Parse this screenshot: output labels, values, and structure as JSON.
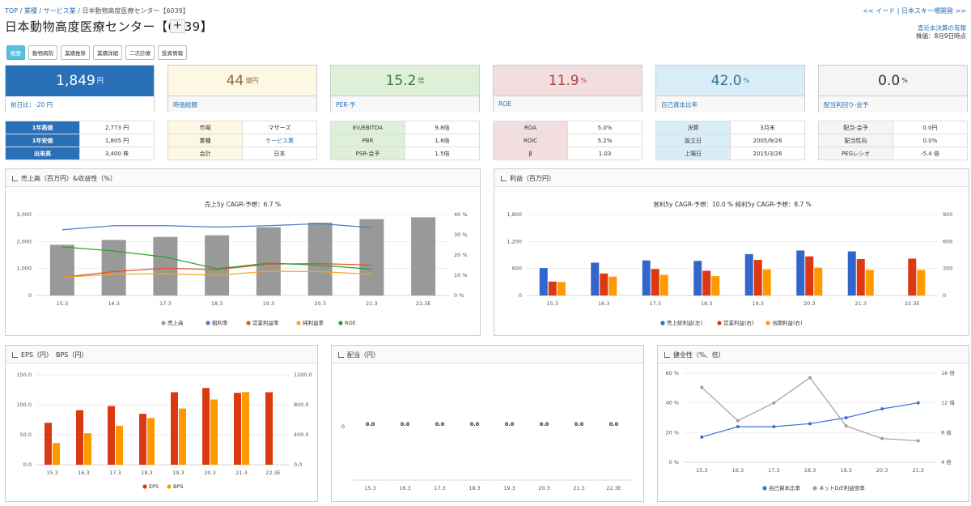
{
  "breadcrumb": {
    "top": "TOP",
    "sep": "/",
    "industry": "業種",
    "sector": "サービス業",
    "current": "日本動物高度医療センター【6039】"
  },
  "topright": "<< イード | 日本スキー場開発 >>",
  "title": "日本動物高度医療センター【6039】",
  "plus": "+",
  "right_info": {
    "link": "直近本決算の有報",
    "date": "株価：8月9日時点"
  },
  "tabs": [
    "概要",
    "動物病院",
    "業績推移",
    "業績詳細",
    "二次診療",
    "投資情報"
  ],
  "kpis": [
    {
      "value": "1,849",
      "unit": "円",
      "label": "前日比：-20 円"
    },
    {
      "value": "44",
      "unit": "億円",
      "label": "時価総額"
    },
    {
      "value": "15.2",
      "unit": "倍",
      "label": "PER-予"
    },
    {
      "value": "11.9",
      "unit": "%",
      "label": "ROE"
    },
    {
      "value": "42.0",
      "unit": "%",
      "label": "自己資本比率"
    },
    {
      "value": "0.0",
      "unit": "%",
      "label": "配当利回り-会予"
    }
  ],
  "tables": [
    [
      [
        "1年高値",
        "2,773 円"
      ],
      [
        "1年安値",
        "1,805 円"
      ],
      [
        "出来高",
        "3,400 株"
      ]
    ],
    [
      [
        "市場",
        "マザーズ"
      ],
      [
        "業種",
        "サービス業"
      ],
      [
        "会計",
        "日本"
      ]
    ],
    [
      [
        "EV/EBITDA",
        "9.8倍"
      ],
      [
        "PBR",
        "1.8倍"
      ],
      [
        "PSR-会予",
        "1.5倍"
      ]
    ],
    [
      [
        "ROA",
        "5.0%"
      ],
      [
        "ROIC",
        "5.2%"
      ],
      [
        "β",
        "1.03"
      ]
    ],
    [
      [
        "決算",
        "3月末"
      ],
      [
        "設立日",
        "2005/9/26"
      ],
      [
        "上場日",
        "2015/3/26"
      ]
    ],
    [
      [
        "配当-会予",
        "0.0円"
      ],
      [
        "配当性向",
        "0.0%"
      ],
      [
        "PEGレシオ",
        "-5.4 倍"
      ]
    ]
  ],
  "colors": {
    "blue": "#3366cc",
    "red": "#dc3912",
    "orange": "#ff9900",
    "green": "#109618",
    "gray": "#999999"
  },
  "chart_data": [
    {
      "type": "bar",
      "panel_title": "売上高（百万円）&収益性（%）",
      "title": "売上5y CAGR-予想：6.7 %",
      "categories": [
        "15.3",
        "16.3",
        "17.3",
        "18.3",
        "19.3",
        "20.3",
        "21.3",
        "22.3E"
      ],
      "yticks_left": [
        "3,000",
        "2,000",
        "1,000",
        "0"
      ],
      "yticks_right": [
        "40 %",
        "30 %",
        "20 %",
        "10 %",
        "0 %"
      ],
      "ylim_left": [
        0,
        3000
      ],
      "ylim_right": [
        0,
        40
      ],
      "series": [
        {
          "name": "売上高",
          "axis": "left",
          "kind": "bar",
          "values": [
            1880,
            2060,
            2170,
            2230,
            2530,
            2700,
            2830,
            2900
          ]
        },
        {
          "name": "粗利率",
          "axis": "right",
          "kind": "line",
          "values": [
            32.5,
            34.5,
            34.5,
            33.8,
            34.5,
            35.5,
            33.5,
            null
          ]
        },
        {
          "name": "営業利益率",
          "axis": "right",
          "kind": "line",
          "values": [
            9.0,
            11.8,
            13.5,
            12.8,
            15.5,
            15.8,
            15.0,
            null
          ]
        },
        {
          "name": "純利益率",
          "axis": "right",
          "kind": "line",
          "values": [
            9.0,
            10.5,
            10.8,
            10.0,
            12.0,
            11.8,
            10.5,
            null
          ]
        },
        {
          "name": "ROE",
          "axis": "right",
          "kind": "line",
          "values": [
            24.0,
            22.0,
            19.0,
            13.2,
            16.0,
            15.0,
            13.0,
            null
          ]
        }
      ],
      "legend": "bottom"
    },
    {
      "type": "bar",
      "panel_title": "利益（百万円）",
      "title": "営利5y CAGR-予想：10.0 %  純利5y CAGR-予想：8.7 %",
      "categories": [
        "15.3",
        "16.3",
        "17.3",
        "18.3",
        "19.3",
        "20.3",
        "21.3",
        "22.3E"
      ],
      "yticks_left": [
        "1,800",
        "1,200",
        "600",
        "0"
      ],
      "yticks_right": [
        "900",
        "600",
        "300",
        "0"
      ],
      "ylim_left": [
        0,
        1800
      ],
      "ylim_right": [
        0,
        900
      ],
      "series": [
        {
          "name": "売上総利益(左)",
          "axis": "left",
          "values": [
            610,
            730,
            780,
            770,
            920,
            1000,
            980,
            null
          ]
        },
        {
          "name": "営業利益(右)",
          "axis": "right",
          "values": [
            155,
            245,
            295,
            275,
            395,
            435,
            405,
            410
          ]
        },
        {
          "name": "当期利益(右)",
          "axis": "right",
          "values": [
            150,
            210,
            230,
            215,
            290,
            310,
            285,
            285
          ]
        }
      ],
      "legend": "bottom"
    },
    {
      "type": "bar",
      "panel_title": "EPS（円）　BPS（円）",
      "categories": [
        "15.3",
        "16.3",
        "17.3",
        "18.3",
        "19.3",
        "20.3",
        "21.3",
        "22.3E"
      ],
      "yticks_left": [
        "150.0",
        "100.0",
        "50.0",
        "0.0"
      ],
      "yticks_right": [
        "1200.0",
        "800.0",
        "400.0",
        "0.0"
      ],
      "ylim_left": [
        0,
        150
      ],
      "ylim_right": [
        0,
        1200
      ],
      "series": [
        {
          "name": "EPS",
          "axis": "left",
          "values": [
            70,
            91,
            98,
            85,
            121,
            128,
            120,
            121
          ]
        },
        {
          "name": "BPS",
          "axis": "right",
          "values": [
            290,
            420,
            520,
            625,
            750,
            870,
            970,
            null
          ]
        }
      ],
      "legend": "bottom"
    },
    {
      "type": "bar",
      "panel_title": "配当（円）",
      "categories": [
        "15.3",
        "16.3",
        "17.3",
        "18.3",
        "19.3",
        "20.3",
        "21.3",
        "22.3E"
      ],
      "yticks_left": [
        "0"
      ],
      "data_labels": [
        "0.0",
        "0.0",
        "0.0",
        "0.0",
        "0.0",
        "0.0",
        "0.0",
        "0.0"
      ],
      "series": [
        {
          "values": [
            0,
            0,
            0,
            0,
            0,
            0,
            0,
            0
          ]
        }
      ]
    },
    {
      "type": "line",
      "panel_title": "健全性（%、倍）",
      "categories": [
        "15.3",
        "16.3",
        "17.3",
        "18.3",
        "19.3",
        "20.3",
        "21.3"
      ],
      "yticks_left": [
        "60 %",
        "40 %",
        "20 %",
        "0 %"
      ],
      "yticks_right": [
        "16 倍",
        "12 倍",
        "8 倍",
        "4 倍"
      ],
      "ylim_left": [
        0,
        60
      ],
      "ylim_right": [
        4,
        16
      ],
      "series": [
        {
          "name": "自己資本比率",
          "axis": "left",
          "values": [
            17,
            24,
            24,
            26,
            30,
            36,
            40
          ]
        },
        {
          "name": "ネットD/E利益倍率",
          "axis": "right",
          "values": [
            14.1,
            9.6,
            12.0,
            15.4,
            8.9,
            7.2,
            6.9
          ]
        }
      ],
      "legend": "bottom"
    }
  ]
}
